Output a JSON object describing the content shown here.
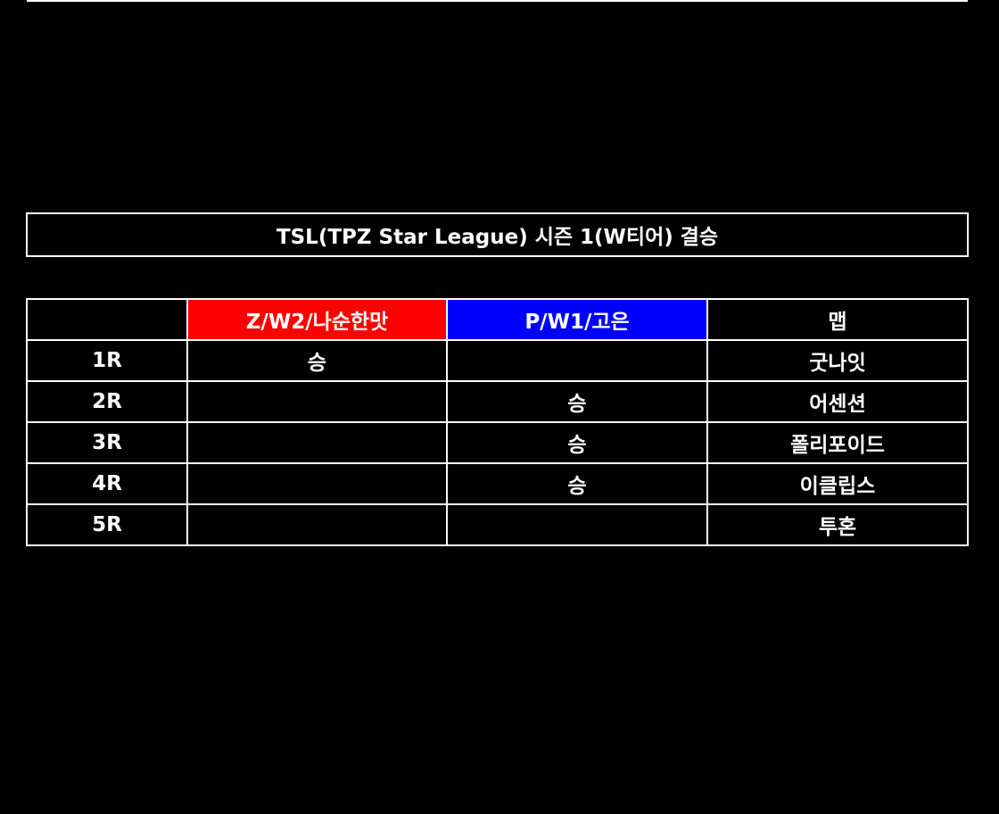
{
  "title": "TSL(TPZ Star League) 시즌 1(W티어) 결승",
  "colors": {
    "background": "#000000",
    "player1_header": "#ff0000",
    "player2_header": "#0000ff",
    "text": "#ffffff"
  },
  "table": {
    "headers": [
      "",
      "Z/W2/나순한맛",
      "P/W1/고은",
      "맵"
    ],
    "rows": [
      {
        "round": "1R",
        "player1": "승",
        "player2": "",
        "map": "굿나잇"
      },
      {
        "round": "2R",
        "player1": "",
        "player2": "승",
        "map": "어센션"
      },
      {
        "round": "3R",
        "player1": "",
        "player2": "승",
        "map": "폴리포이드"
      },
      {
        "round": "4R",
        "player1": "",
        "player2": "승",
        "map": "이클립스"
      },
      {
        "round": "5R",
        "player1": "",
        "player2": "",
        "map": "투혼"
      }
    ]
  }
}
